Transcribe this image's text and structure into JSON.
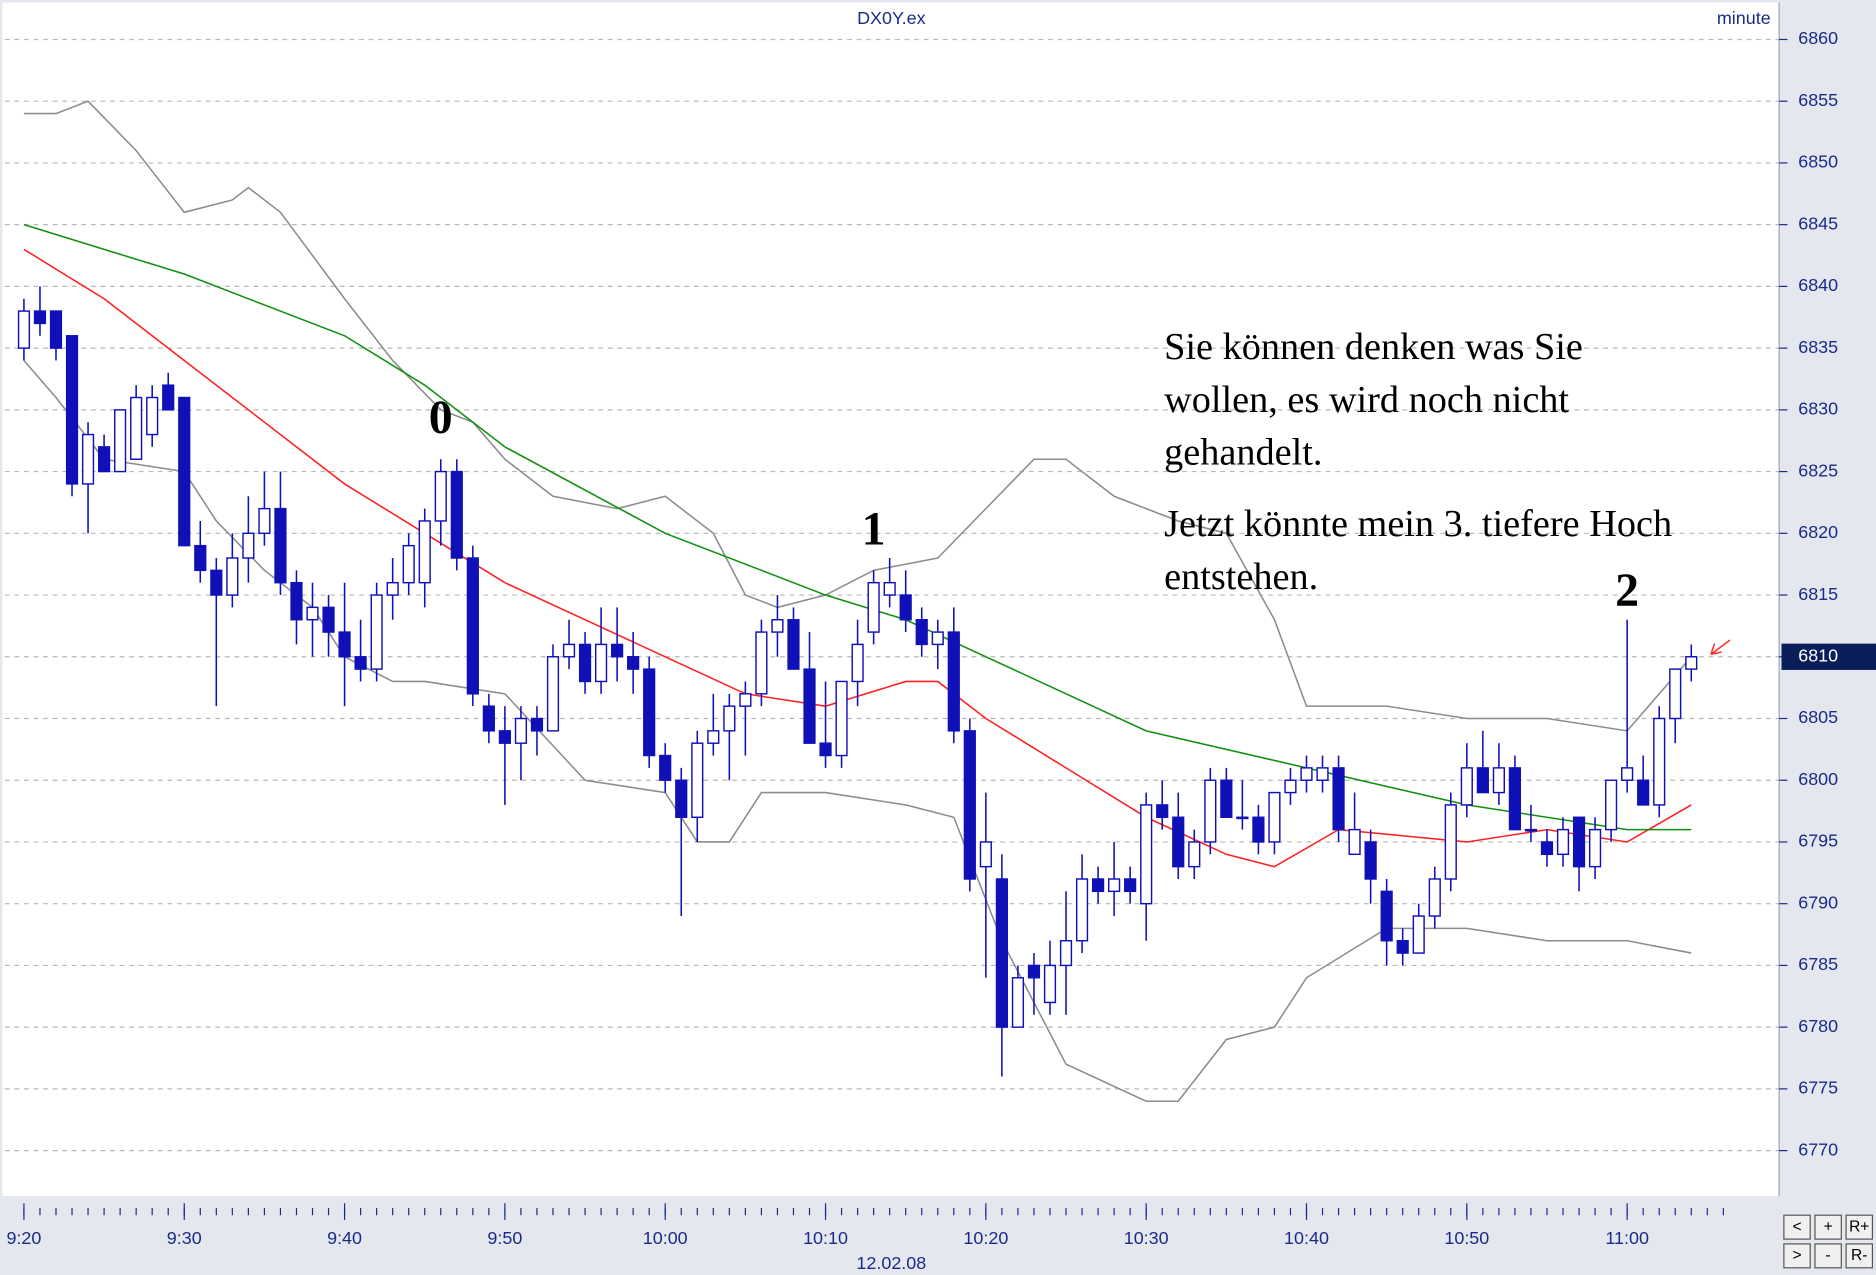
{
  "chart_data": {
    "type": "candlestick",
    "title": "DX0Y.ex",
    "interval": "minute",
    "date": "12.02.08",
    "x": [
      "9:20",
      "9:21",
      "9:22",
      "9:23",
      "9:24",
      "9:25",
      "9:26",
      "9:27",
      "9:28",
      "9:29",
      "9:30",
      "9:31",
      "9:32",
      "9:33",
      "9:34",
      "9:35",
      "9:36",
      "9:37",
      "9:38",
      "9:39",
      "9:40",
      "9:41",
      "9:42",
      "9:43",
      "9:44",
      "9:45",
      "9:46",
      "9:47",
      "9:48",
      "9:49",
      "9:50",
      "9:51",
      "9:52",
      "9:53",
      "9:54",
      "9:55",
      "9:56",
      "9:57",
      "9:58",
      "9:59",
      "10:00",
      "10:01",
      "10:02",
      "10:03",
      "10:04",
      "10:05",
      "10:06",
      "10:07",
      "10:08",
      "10:09",
      "10:10",
      "10:11",
      "10:12",
      "10:13",
      "10:14",
      "10:15",
      "10:16",
      "10:17",
      "10:18",
      "10:19",
      "10:20",
      "10:21",
      "10:22",
      "10:23",
      "10:24",
      "10:25",
      "10:26",
      "10:27",
      "10:28",
      "10:29",
      "10:30",
      "10:31",
      "10:32",
      "10:33",
      "10:34",
      "10:35",
      "10:36",
      "10:37",
      "10:38",
      "10:39",
      "10:40",
      "10:41",
      "10:42",
      "10:43",
      "10:44",
      "10:45",
      "10:46",
      "10:47",
      "10:48",
      "10:49",
      "10:50",
      "10:51",
      "10:52",
      "10:53",
      "10:54",
      "10:55",
      "10:56",
      "10:57",
      "10:58",
      "10:59",
      "11:00",
      "11:01",
      "11:02",
      "11:03",
      "11:04"
    ],
    "candles": [
      [
        6835,
        6839,
        6834,
        6838
      ],
      [
        6838,
        6840,
        6836,
        6837
      ],
      [
        6838,
        6838,
        6834,
        6835
      ],
      [
        6836,
        6836,
        6823,
        6824
      ],
      [
        6824,
        6829,
        6820,
        6828
      ],
      [
        6827,
        6828,
        6825,
        6825
      ],
      [
        6825,
        6830,
        6825,
        6830
      ],
      [
        6826,
        6832,
        6826,
        6831
      ],
      [
        6828,
        6832,
        6827,
        6831
      ],
      [
        6832,
        6833,
        6830,
        6830
      ],
      [
        6831,
        6831,
        6819,
        6819
      ],
      [
        6819,
        6821,
        6816,
        6817
      ],
      [
        6817,
        6818,
        6806,
        6815
      ],
      [
        6815,
        6820,
        6814,
        6818
      ],
      [
        6818,
        6823,
        6816,
        6820
      ],
      [
        6820,
        6825,
        6819,
        6822
      ],
      [
        6822,
        6825,
        6815,
        6816
      ],
      [
        6816,
        6817,
        6811,
        6813
      ],
      [
        6813,
        6816,
        6810,
        6814
      ],
      [
        6814,
        6815,
        6810,
        6812
      ],
      [
        6812,
        6816,
        6806,
        6810
      ],
      [
        6810,
        6813,
        6808,
        6809
      ],
      [
        6809,
        6816,
        6808,
        6815
      ],
      [
        6815,
        6818,
        6813,
        6816
      ],
      [
        6816,
        6820,
        6815,
        6819
      ],
      [
        6816,
        6822,
        6814,
        6821
      ],
      [
        6821,
        6826,
        6819,
        6825
      ],
      [
        6825,
        6826,
        6817,
        6818
      ],
      [
        6818,
        6819,
        6806,
        6807
      ],
      [
        6806,
        6807,
        6803,
        6804
      ],
      [
        6804,
        6806,
        6798,
        6803
      ],
      [
        6803,
        6806,
        6800,
        6805
      ],
      [
        6805,
        6806,
        6802,
        6804
      ],
      [
        6804,
        6811,
        6804,
        6810
      ],
      [
        6810,
        6813,
        6809,
        6811
      ],
      [
        6811,
        6812,
        6807,
        6808
      ],
      [
        6808,
        6814,
        6807,
        6811
      ],
      [
        6811,
        6814,
        6808,
        6810
      ],
      [
        6810,
        6812,
        6807,
        6809
      ],
      [
        6809,
        6810,
        6801,
        6802
      ],
      [
        6802,
        6803,
        6799,
        6800
      ],
      [
        6800,
        6801,
        6789,
        6797
      ],
      [
        6797,
        6804,
        6795,
        6803
      ],
      [
        6803,
        6807,
        6802,
        6804
      ],
      [
        6804,
        6807,
        6800,
        6806
      ],
      [
        6806,
        6808,
        6802,
        6807
      ],
      [
        6807,
        6813,
        6806,
        6812
      ],
      [
        6812,
        6815,
        6810,
        6813
      ],
      [
        6813,
        6814,
        6809,
        6809
      ],
      [
        6809,
        6812,
        6803,
        6803
      ],
      [
        6803,
        6808,
        6801,
        6802
      ],
      [
        6802,
        6808,
        6801,
        6808
      ],
      [
        6808,
        6813,
        6806,
        6811
      ],
      [
        6812,
        6817,
        6811,
        6816
      ],
      [
        6815,
        6818,
        6814,
        6816
      ],
      [
        6815,
        6817,
        6812,
        6813
      ],
      [
        6813,
        6814,
        6810,
        6811
      ],
      [
        6811,
        6813,
        6809,
        6812
      ],
      [
        6812,
        6814,
        6803,
        6804
      ],
      [
        6804,
        6805,
        6791,
        6792
      ],
      [
        6793,
        6799,
        6784,
        6795
      ],
      [
        6792,
        6794,
        6776,
        6780
      ],
      [
        6780,
        6785,
        6780,
        6784
      ],
      [
        6785,
        6786,
        6781,
        6784
      ],
      [
        6782,
        6787,
        6781,
        6785
      ],
      [
        6785,
        6791,
        6781,
        6787
      ],
      [
        6787,
        6794,
        6786,
        6792
      ],
      [
        6792,
        6793,
        6790,
        6791
      ],
      [
        6791,
        6795,
        6789,
        6792
      ],
      [
        6792,
        6793,
        6790,
        6791
      ],
      [
        6790,
        6799,
        6787,
        6798
      ],
      [
        6798,
        6800,
        6796,
        6797
      ],
      [
        6797,
        6799,
        6792,
        6793
      ],
      [
        6793,
        6796,
        6792,
        6795
      ],
      [
        6795,
        6801,
        6794,
        6800
      ],
      [
        6800,
        6801,
        6797,
        6797
      ],
      [
        6797,
        6800,
        6796,
        6797
      ],
      [
        6797,
        6798,
        6794,
        6795
      ],
      [
        6795,
        6799,
        6794,
        6799
      ],
      [
        6799,
        6801,
        6798,
        6800
      ],
      [
        6800,
        6802,
        6799,
        6801
      ],
      [
        6800,
        6802,
        6799,
        6801
      ],
      [
        6801,
        6802,
        6795,
        6796
      ],
      [
        6794,
        6799,
        6794,
        6796
      ],
      [
        6795,
        6796,
        6790,
        6792
      ],
      [
        6791,
        6792,
        6785,
        6787
      ],
      [
        6787,
        6788,
        6785,
        6786
      ],
      [
        6786,
        6790,
        6786,
        6789
      ],
      [
        6789,
        6793,
        6788,
        6792
      ],
      [
        6792,
        6799,
        6791,
        6798
      ],
      [
        6798,
        6803,
        6797,
        6801
      ],
      [
        6801,
        6804,
        6799,
        6799
      ],
      [
        6799,
        6803,
        6798,
        6801
      ],
      [
        6801,
        6802,
        6796,
        6796
      ],
      [
        6796,
        6798,
        6795,
        6796
      ],
      [
        6795,
        6796,
        6793,
        6794
      ],
      [
        6794,
        6797,
        6793,
        6796
      ],
      [
        6797,
        6797,
        6791,
        6793
      ],
      [
        6793,
        6797,
        6792,
        6796
      ],
      [
        6796,
        6800,
        6795,
        6800
      ],
      [
        6800,
        6813,
        6799,
        6801
      ],
      [
        6800,
        6802,
        6798,
        6798
      ],
      [
        6798,
        6806,
        6797,
        6805
      ],
      [
        6805,
        6809,
        6803,
        6809
      ],
      [
        6809,
        6811,
        6808,
        6810
      ]
    ],
    "up_color": "#ffffff",
    "down_color": "#1010b8",
    "edge_color": "#1010b8",
    "indicators": [
      {
        "color": "#8c8c8c",
        "x": [
          "9:20",
          "9:22",
          "9:24",
          "9:27",
          "9:30",
          "9:33",
          "9:34",
          "9:36",
          "9:40",
          "9:43",
          "9:46",
          "9:48",
          "9:50",
          "9:53",
          "9:57",
          "10:00",
          "10:03",
          "10:05",
          "10:07",
          "10:10",
          "10:13",
          "10:17",
          "10:20",
          "10:23",
          "10:25",
          "10:28",
          "10:32",
          "10:35",
          "10:38",
          "10:40",
          "10:42",
          "10:45",
          "10:50",
          "10:55",
          "11:00",
          "11:04"
        ],
        "values": [
          6854,
          6854,
          6855,
          6851,
          6846,
          6847,
          6848,
          6846,
          6839,
          6834,
          6830,
          6829,
          6826,
          6823,
          6822,
          6823,
          6820,
          6815,
          6814,
          6815,
          6817,
          6818,
          6822,
          6826,
          6826,
          6823,
          6821,
          6820,
          6813,
          6806,
          6806,
          6806,
          6805,
          6805,
          6804,
          6810
        ]
      },
      {
        "color": "#8c8c8c",
        "x": [
          "9:20",
          "9:22",
          "9:25",
          "9:30",
          "9:32",
          "9:35",
          "9:38",
          "9:40",
          "9:43",
          "9:45",
          "9:50",
          "9:55",
          "10:00",
          "10:02",
          "10:04",
          "10:06",
          "10:10",
          "10:15",
          "10:18",
          "10:21",
          "10:25",
          "10:30",
          "10:32",
          "10:35",
          "10:38",
          "10:40",
          "10:45",
          "10:50",
          "10:55",
          "11:00",
          "11:04"
        ],
        "values": [
          6834,
          6831,
          6826,
          6825,
          6821,
          6817,
          6814,
          6810,
          6808,
          6808,
          6807,
          6800,
          6799,
          6795,
          6795,
          6799,
          6799,
          6798,
          6797,
          6787,
          6777,
          6774,
          6774,
          6779,
          6780,
          6784,
          6788,
          6788,
          6787,
          6787,
          6786
        ]
      },
      {
        "color": "#ff2020",
        "x": [
          "9:20",
          "9:25",
          "9:30",
          "9:40",
          "9:45",
          "9:50",
          "10:00",
          "10:05",
          "10:10",
          "10:15",
          "10:17",
          "10:20",
          "10:25",
          "10:30",
          "10:35",
          "10:38",
          "10:42",
          "10:50",
          "10:55",
          "11:00",
          "11:04"
        ],
        "values": [
          6843,
          6839,
          6834,
          6824,
          6820,
          6816,
          6810,
          6807,
          6806,
          6808,
          6808,
          6805,
          6801,
          6797,
          6794,
          6793,
          6796,
          6795,
          6796,
          6795,
          6798
        ]
      },
      {
        "color": "#109010",
        "x": [
          "9:20",
          "9:30",
          "9:40",
          "9:45",
          "9:50",
          "10:00",
          "10:10",
          "10:15",
          "10:20",
          "10:30",
          "10:40",
          "10:50",
          "11:00",
          "11:04"
        ],
        "values": [
          6845,
          6841,
          6836,
          6832,
          6827,
          6820,
          6815,
          6813,
          6810,
          6804,
          6801,
          6798,
          6796,
          6796
        ]
      }
    ],
    "ylim": [
      6767,
      6863
    ],
    "yticks": [
      6770,
      6775,
      6780,
      6785,
      6790,
      6795,
      6800,
      6805,
      6810,
      6815,
      6820,
      6825,
      6830,
      6835,
      6840,
      6845,
      6850,
      6855,
      6860
    ],
    "xticks": [
      "9:20",
      "9:30",
      "9:40",
      "9:50",
      "10:00",
      "10:10",
      "10:20",
      "10:30",
      "10:40",
      "10:50",
      "11:00"
    ],
    "grid": true,
    "last_price": 6810,
    "annotations": [
      {
        "text": "0",
        "x": "9:46",
        "y": 6829
      },
      {
        "text": "1",
        "x": "10:13",
        "y": 6820
      },
      {
        "text": "2",
        "x": "11:00",
        "y": 6815
      }
    ],
    "note": [
      [
        "Sie können denken was Sie",
        "wollen, es wird noch nicht",
        "gehandelt."
      ],
      [
        "Jetzt könnte mein 3. tiefere Hoch",
        "entstehen."
      ]
    ]
  },
  "buttons": [
    "<",
    "+",
    "R+",
    ">",
    "-",
    "R-"
  ]
}
